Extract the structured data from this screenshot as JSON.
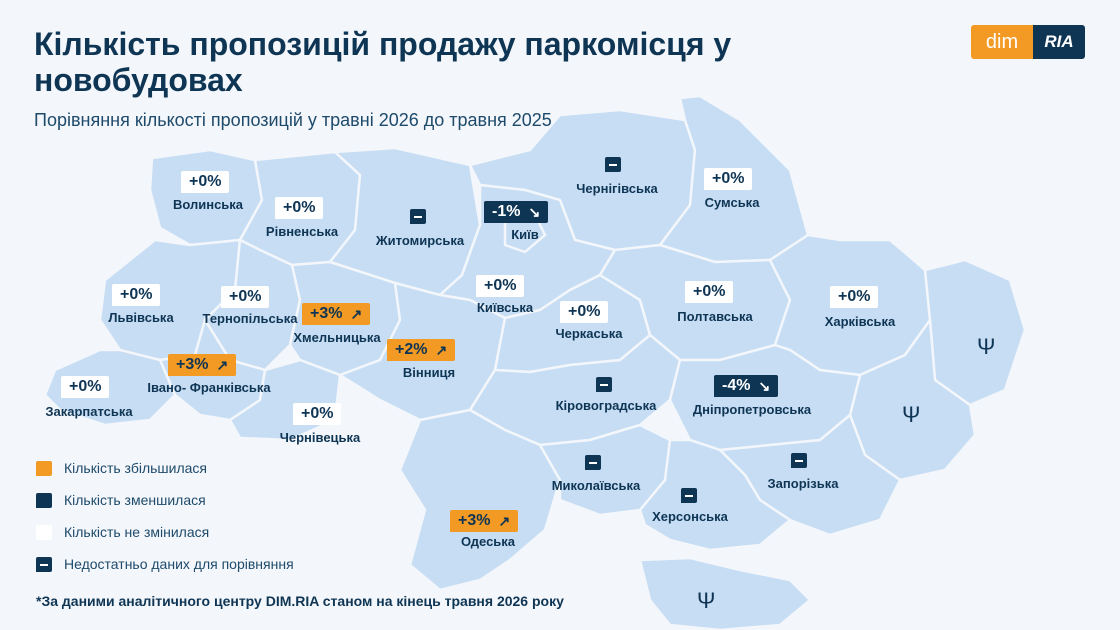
{
  "title": "Кількість пропозицій продажу паркомісця у новобудовах",
  "subtitle": "Порівняння кількості пропозицій у травні 2026 до травня 2025",
  "logo": {
    "left": "dim",
    "right": "RIA"
  },
  "colors": {
    "increase": "#f29a23",
    "decrease": "#0f3554",
    "nochange": "#ffffff",
    "region_fill": "#c6ddf4",
    "text": "#0f3554"
  },
  "regions": {
    "volyn": {
      "name": "Волинська",
      "value": "+0%",
      "status": "nochange"
    },
    "rivne": {
      "name": "Рівненська",
      "value": "+0%",
      "status": "nochange"
    },
    "zhytomyr": {
      "name": "Житомирська",
      "value": "",
      "status": "nodata"
    },
    "chernihiv": {
      "name": "Чернігівська",
      "value": "",
      "status": "nodata"
    },
    "sumy": {
      "name": "Сумська",
      "value": "+0%",
      "status": "nochange"
    },
    "kyiv_city": {
      "name": "Київ",
      "value": "-1%",
      "status": "decrease"
    },
    "lviv": {
      "name": "Львівська",
      "value": "+0%",
      "status": "nochange"
    },
    "ternopil": {
      "name": "Тернопільська",
      "value": "+0%",
      "status": "nochange"
    },
    "khmelnytskyi": {
      "name": "Хмельницька",
      "value": "+3%",
      "status": "increase"
    },
    "kyiv_oblast": {
      "name": "Київська",
      "value": "+0%",
      "status": "nochange"
    },
    "cherkasy": {
      "name": "Черкаська",
      "value": "+0%",
      "status": "nochange"
    },
    "poltava": {
      "name": "Полтавська",
      "value": "+0%",
      "status": "nochange"
    },
    "kharkiv": {
      "name": "Харківська",
      "value": "+0%",
      "status": "nochange"
    },
    "ivano_frankivsk": {
      "name": "Івано- Франківська",
      "value": "+3%",
      "status": "increase"
    },
    "vinnytsia": {
      "name": "Вінниця",
      "value": "+2%",
      "status": "increase"
    },
    "zakarpattia": {
      "name": "Закарпатська",
      "value": "+0%",
      "status": "nochange"
    },
    "chernivtsi": {
      "name": "Чернівецька",
      "value": "+0%",
      "status": "nochange"
    },
    "kirovohrad": {
      "name": "Кіровоградська",
      "value": "",
      "status": "nodata"
    },
    "dnipropetrovsk": {
      "name": "Дніпропетровська",
      "value": "-4%",
      "status": "decrease"
    },
    "mykolaiv": {
      "name": "Миколаївська",
      "value": "",
      "status": "nodata"
    },
    "zaporizhzhia": {
      "name": "Запорізька",
      "value": "",
      "status": "nodata"
    },
    "kherson": {
      "name": "Херсонська",
      "value": "",
      "status": "nodata"
    },
    "odesa": {
      "name": "Одеська",
      "value": "+3%",
      "status": "increase"
    }
  },
  "legend": {
    "increase": "Кількість збільшилася",
    "decrease": "Кількість зменшилася",
    "nochange": "Кількість не змінилася",
    "nodata": "Недостатньо даних для порівняння"
  },
  "footnote": "*За даними аналітичного центру DIM.RIA станом на кінець травня 2026 року",
  "icons": {
    "up_arrow": "arrow-up-right-icon",
    "down_arrow": "arrow-down-right-icon",
    "trident": "trident-icon"
  }
}
